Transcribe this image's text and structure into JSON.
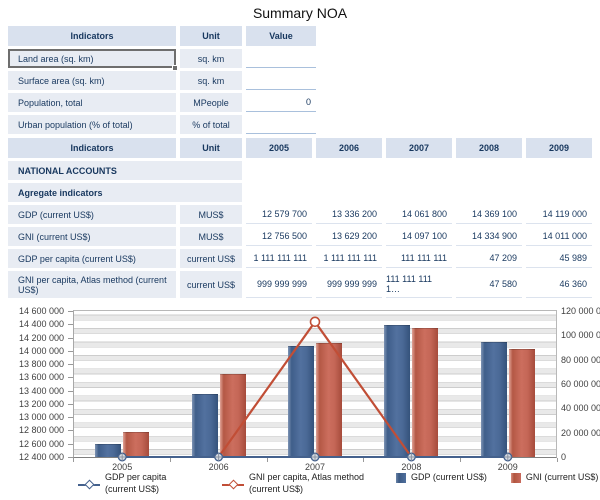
{
  "title": "Summary NOA",
  "table1": {
    "headers": [
      "Indicators",
      "Unit",
      "Value"
    ],
    "rows": [
      {
        "indicator": "Land area (sq. km)",
        "unit": "sq. km",
        "value": "",
        "selected": true
      },
      {
        "indicator": "Surface area (sq. km)",
        "unit": "sq. km",
        "value": ""
      },
      {
        "indicator": "Population, total",
        "unit": "MPeople",
        "value": "0"
      },
      {
        "indicator": "Urban population (% of total)",
        "unit": "% of total",
        "value": ""
      }
    ]
  },
  "table2": {
    "headers": [
      "Indicators",
      "Unit",
      "2005",
      "2006",
      "2007",
      "2008",
      "2009"
    ],
    "rows": [
      {
        "indicator": "NATIONAL ACCOUNTS",
        "unit": "",
        "values": [
          "",
          "",
          "",
          "",
          ""
        ],
        "section": true
      },
      {
        "indicator": "Agregate indicators",
        "unit": "",
        "values": [
          "",
          "",
          "",
          "",
          ""
        ],
        "section": true
      },
      {
        "indicator": "GDP (current US$)",
        "unit": "MUS$",
        "values": [
          "12 579 700",
          "13 336 200",
          "14 061 800",
          "14 369 100",
          "14 119 000"
        ]
      },
      {
        "indicator": "GNI (current US$)",
        "unit": "MUS$",
        "values": [
          "12 756 500",
          "13 629 200",
          "14 097 100",
          "14 334 900",
          "14 011 000"
        ]
      },
      {
        "indicator": "GDP per capita (current US$)",
        "unit": "current US$",
        "values": [
          "1 111 111 111",
          "1 111 111 111",
          "111 111 111",
          "47 209",
          "45 989"
        ]
      },
      {
        "indicator": "GNI per capita, Atlas method (current US$)",
        "unit": "current US$",
        "values": [
          "999 999 999",
          "999 999 999",
          "111 111 111 1…",
          "47 580",
          "46 360"
        ],
        "tall": true
      }
    ]
  },
  "chart_data": {
    "type": "combo",
    "categories": [
      "2005",
      "2006",
      "2007",
      "2008",
      "2009"
    ],
    "bar_series": [
      {
        "name": "GDP (current US$)",
        "color": "#4A6D9B",
        "values": [
          12579700,
          13336200,
          14061800,
          14369100,
          14119000
        ]
      },
      {
        "name": "GNI (current US$)",
        "color": "#C96A5C",
        "values": [
          12756500,
          13629200,
          14097100,
          14334900,
          14011000
        ]
      }
    ],
    "line_series": [
      {
        "name": "GDP per capita (current US$)",
        "color": "#44618D",
        "axis": "right",
        "values": [
          1111111111,
          1111111111,
          111111111,
          47209,
          45989
        ],
        "plotted": [
          0,
          0,
          0,
          0,
          0
        ],
        "marker": "cross-circle-all"
      },
      {
        "name": "GNI per capita, Atlas method (current US$)",
        "color": "#C14E36",
        "axis": "right",
        "values": [
          999999999,
          999999999,
          111111111,
          47580,
          46360
        ],
        "plotted": [
          null,
          0,
          111111111,
          0,
          null
        ],
        "marker": "ring-peak",
        "peak_index": 2
      }
    ],
    "left_axis": {
      "min": 12400000,
      "max": 14600000,
      "step": 200000
    },
    "right_axis": {
      "min": 0,
      "max": 120000000,
      "step": 20000000
    },
    "grid": "banded-horizontal",
    "legend_position": "bottom"
  },
  "legend": [
    {
      "label": "GDP per capita (current US$)",
      "cls": "lg-line-blue"
    },
    {
      "label": "GNI per capita, Atlas method (current US$)",
      "cls": "lg-line-red"
    },
    {
      "label": "GDP (current US$)",
      "cls": "lg-box-blue"
    },
    {
      "label": "GNI (current US$)",
      "cls": "lg-box-red"
    }
  ]
}
